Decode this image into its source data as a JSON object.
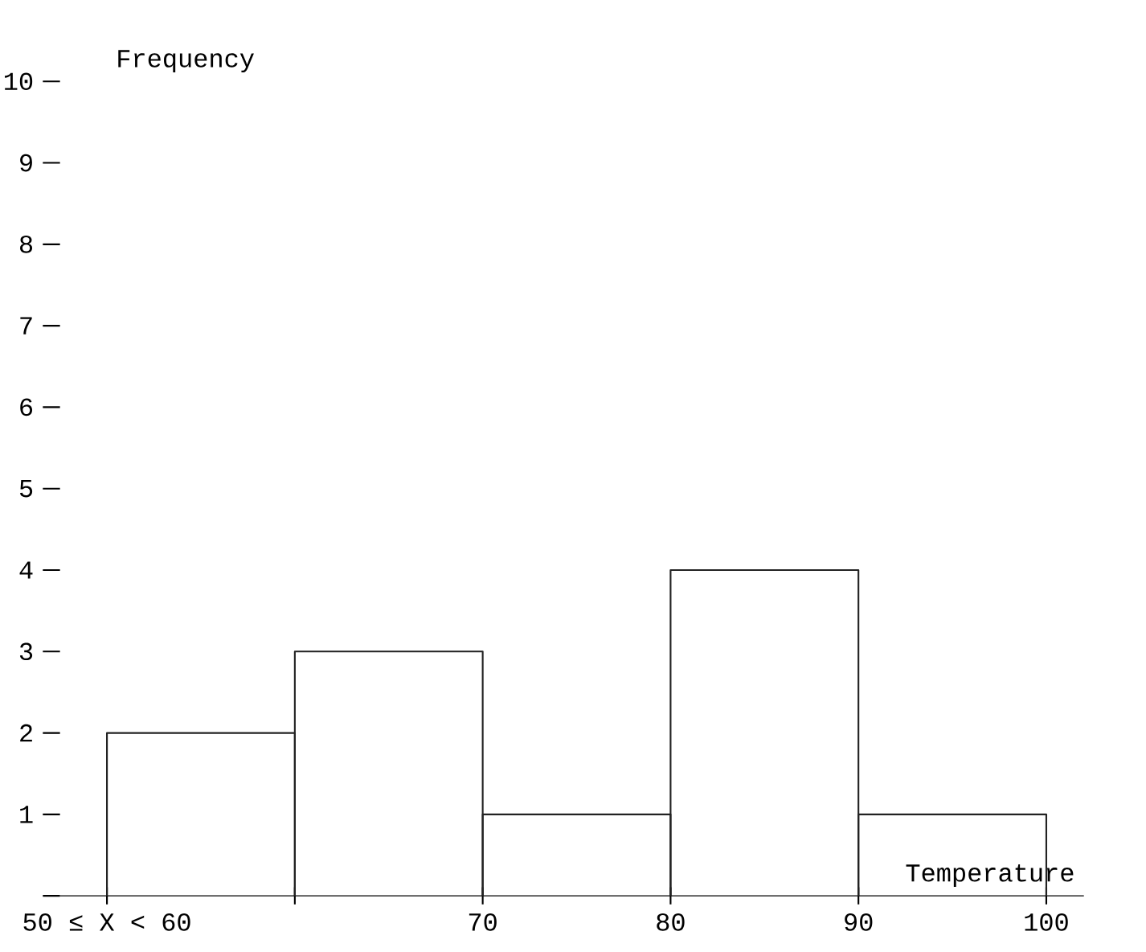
{
  "chart_data": {
    "type": "histogram",
    "xlabel": "Temperature",
    "ylabel": "Frequency",
    "bins": [
      50,
      60,
      70,
      80,
      90,
      100
    ],
    "values": [
      2,
      3,
      1,
      4,
      1
    ],
    "color": "#222222",
    "xlim": [
      47.5,
      102
    ],
    "ylim": [
      0,
      10
    ],
    "xticks": [
      {
        "value": 50,
        "label": "50 ≤ X < 60"
      },
      {
        "value": 60,
        "label": null
      },
      70,
      80,
      90,
      100
    ],
    "yticks": [
      {
        "value": 0,
        "label": null
      },
      1,
      2,
      3,
      4,
      5,
      6,
      7,
      8,
      9,
      10
    ],
    "grid": false
  }
}
